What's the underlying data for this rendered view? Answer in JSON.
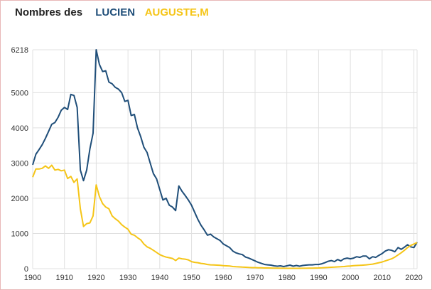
{
  "title": {
    "prefix": "Nombres des",
    "names": [
      "LUCIEN",
      "AUGUSTE,M"
    ]
  },
  "chart_data": {
    "type": "line",
    "xlim": [
      1900,
      2021
    ],
    "ylim": [
      0,
      6218
    ],
    "x_ticks": [
      1900,
      1910,
      1920,
      1930,
      1940,
      1950,
      1960,
      1970,
      1980,
      1990,
      2000,
      2010,
      2020
    ],
    "y_ticks": [
      0,
      1000,
      2000,
      3000,
      4000,
      5000,
      6218
    ],
    "grid": true,
    "legend": "top-left",
    "series": [
      {
        "name": "LUCIEN",
        "color": "#1f4e79",
        "points": [
          [
            1900,
            2950
          ],
          [
            1901,
            3250
          ],
          [
            1902,
            3380
          ],
          [
            1903,
            3520
          ],
          [
            1904,
            3700
          ],
          [
            1905,
            3900
          ],
          [
            1906,
            4100
          ],
          [
            1907,
            4150
          ],
          [
            1908,
            4300
          ],
          [
            1909,
            4500
          ],
          [
            1910,
            4580
          ],
          [
            1911,
            4520
          ],
          [
            1912,
            4950
          ],
          [
            1913,
            4920
          ],
          [
            1914,
            4580
          ],
          [
            1915,
            2800
          ],
          [
            1916,
            2500
          ],
          [
            1917,
            2800
          ],
          [
            1918,
            3400
          ],
          [
            1919,
            3850
          ],
          [
            1920,
            6218
          ],
          [
            1921,
            5800
          ],
          [
            1922,
            5600
          ],
          [
            1923,
            5620
          ],
          [
            1924,
            5300
          ],
          [
            1925,
            5250
          ],
          [
            1926,
            5150
          ],
          [
            1927,
            5100
          ],
          [
            1928,
            5000
          ],
          [
            1929,
            4750
          ],
          [
            1930,
            4780
          ],
          [
            1931,
            4350
          ],
          [
            1932,
            4380
          ],
          [
            1933,
            4000
          ],
          [
            1934,
            3750
          ],
          [
            1935,
            3450
          ],
          [
            1936,
            3300
          ],
          [
            1937,
            3000
          ],
          [
            1938,
            2700
          ],
          [
            1939,
            2550
          ],
          [
            1940,
            2250
          ],
          [
            1941,
            1950
          ],
          [
            1942,
            2000
          ],
          [
            1943,
            1800
          ],
          [
            1944,
            1750
          ],
          [
            1945,
            1650
          ],
          [
            1946,
            2350
          ],
          [
            1947,
            2200
          ],
          [
            1948,
            2080
          ],
          [
            1949,
            1950
          ],
          [
            1950,
            1800
          ],
          [
            1951,
            1600
          ],
          [
            1952,
            1400
          ],
          [
            1953,
            1230
          ],
          [
            1954,
            1100
          ],
          [
            1955,
            950
          ],
          [
            1956,
            980
          ],
          [
            1957,
            900
          ],
          [
            1958,
            850
          ],
          [
            1959,
            800
          ],
          [
            1960,
            700
          ],
          [
            1961,
            650
          ],
          [
            1962,
            600
          ],
          [
            1963,
            500
          ],
          [
            1964,
            450
          ],
          [
            1965,
            420
          ],
          [
            1966,
            400
          ],
          [
            1967,
            330
          ],
          [
            1968,
            300
          ],
          [
            1969,
            260
          ],
          [
            1970,
            220
          ],
          [
            1971,
            180
          ],
          [
            1972,
            150
          ],
          [
            1973,
            120
          ],
          [
            1974,
            110
          ],
          [
            1975,
            100
          ],
          [
            1976,
            80
          ],
          [
            1977,
            70
          ],
          [
            1978,
            80
          ],
          [
            1979,
            60
          ],
          [
            1980,
            80
          ],
          [
            1981,
            100
          ],
          [
            1982,
            70
          ],
          [
            1983,
            90
          ],
          [
            1984,
            70
          ],
          [
            1985,
            90
          ],
          [
            1986,
            100
          ],
          [
            1987,
            110
          ],
          [
            1988,
            110
          ],
          [
            1989,
            120
          ],
          [
            1990,
            120
          ],
          [
            1991,
            140
          ],
          [
            1992,
            170
          ],
          [
            1993,
            210
          ],
          [
            1994,
            230
          ],
          [
            1995,
            200
          ],
          [
            1996,
            260
          ],
          [
            1997,
            220
          ],
          [
            1998,
            280
          ],
          [
            1999,
            300
          ],
          [
            2000,
            280
          ],
          [
            2001,
            300
          ],
          [
            2002,
            340
          ],
          [
            2003,
            320
          ],
          [
            2004,
            360
          ],
          [
            2005,
            360
          ],
          [
            2006,
            280
          ],
          [
            2007,
            340
          ],
          [
            2008,
            320
          ],
          [
            2009,
            380
          ],
          [
            2010,
            430
          ],
          [
            2011,
            500
          ],
          [
            2012,
            540
          ],
          [
            2013,
            520
          ],
          [
            2014,
            480
          ],
          [
            2015,
            600
          ],
          [
            2016,
            550
          ],
          [
            2017,
            610
          ],
          [
            2018,
            680
          ],
          [
            2019,
            620
          ],
          [
            2020,
            600
          ],
          [
            2021,
            750
          ]
        ]
      },
      {
        "name": "AUGUSTE,M",
        "color": "#f5c518",
        "points": [
          [
            1900,
            2600
          ],
          [
            1901,
            2830
          ],
          [
            1902,
            2830
          ],
          [
            1903,
            2850
          ],
          [
            1904,
            2920
          ],
          [
            1905,
            2850
          ],
          [
            1906,
            2940
          ],
          [
            1907,
            2800
          ],
          [
            1908,
            2820
          ],
          [
            1909,
            2780
          ],
          [
            1910,
            2800
          ],
          [
            1911,
            2560
          ],
          [
            1912,
            2620
          ],
          [
            1913,
            2450
          ],
          [
            1914,
            2550
          ],
          [
            1915,
            1700
          ],
          [
            1916,
            1200
          ],
          [
            1917,
            1280
          ],
          [
            1918,
            1300
          ],
          [
            1919,
            1500
          ],
          [
            1920,
            2380
          ],
          [
            1921,
            2050
          ],
          [
            1922,
            1850
          ],
          [
            1923,
            1750
          ],
          [
            1924,
            1700
          ],
          [
            1925,
            1500
          ],
          [
            1926,
            1420
          ],
          [
            1927,
            1350
          ],
          [
            1928,
            1250
          ],
          [
            1929,
            1180
          ],
          [
            1930,
            1120
          ],
          [
            1931,
            980
          ],
          [
            1932,
            950
          ],
          [
            1933,
            880
          ],
          [
            1934,
            820
          ],
          [
            1935,
            700
          ],
          [
            1936,
            620
          ],
          [
            1937,
            580
          ],
          [
            1938,
            520
          ],
          [
            1939,
            460
          ],
          [
            1940,
            400
          ],
          [
            1941,
            360
          ],
          [
            1942,
            330
          ],
          [
            1943,
            310
          ],
          [
            1944,
            290
          ],
          [
            1945,
            230
          ],
          [
            1946,
            300
          ],
          [
            1947,
            280
          ],
          [
            1948,
            270
          ],
          [
            1949,
            250
          ],
          [
            1950,
            200
          ],
          [
            1951,
            180
          ],
          [
            1952,
            170
          ],
          [
            1953,
            150
          ],
          [
            1954,
            140
          ],
          [
            1955,
            120
          ],
          [
            1956,
            110
          ],
          [
            1957,
            105
          ],
          [
            1958,
            100
          ],
          [
            1959,
            95
          ],
          [
            1960,
            85
          ],
          [
            1961,
            80
          ],
          [
            1962,
            75
          ],
          [
            1963,
            60
          ],
          [
            1964,
            55
          ],
          [
            1965,
            50
          ],
          [
            1966,
            45
          ],
          [
            1967,
            40
          ],
          [
            1968,
            35
          ],
          [
            1969,
            30
          ],
          [
            1970,
            30
          ],
          [
            1971,
            25
          ],
          [
            1972,
            25
          ],
          [
            1973,
            20
          ],
          [
            1974,
            20
          ],
          [
            1975,
            18
          ],
          [
            1976,
            15
          ],
          [
            1977,
            15
          ],
          [
            1978,
            12
          ],
          [
            1979,
            12
          ],
          [
            1980,
            10
          ],
          [
            1981,
            10
          ],
          [
            1982,
            10
          ],
          [
            1983,
            10
          ],
          [
            1984,
            10
          ],
          [
            1985,
            12
          ],
          [
            1986,
            12
          ],
          [
            1987,
            15
          ],
          [
            1988,
            15
          ],
          [
            1989,
            18
          ],
          [
            1990,
            20
          ],
          [
            1991,
            25
          ],
          [
            1992,
            30
          ],
          [
            1993,
            35
          ],
          [
            1994,
            40
          ],
          [
            1995,
            45
          ],
          [
            1996,
            50
          ],
          [
            1997,
            55
          ],
          [
            1998,
            60
          ],
          [
            1999,
            70
          ],
          [
            2000,
            75
          ],
          [
            2001,
            85
          ],
          [
            2002,
            90
          ],
          [
            2003,
            95
          ],
          [
            2004,
            100
          ],
          [
            2005,
            110
          ],
          [
            2006,
            120
          ],
          [
            2007,
            130
          ],
          [
            2008,
            150
          ],
          [
            2009,
            170
          ],
          [
            2010,
            190
          ],
          [
            2011,
            220
          ],
          [
            2012,
            250
          ],
          [
            2013,
            280
          ],
          [
            2014,
            330
          ],
          [
            2015,
            390
          ],
          [
            2016,
            450
          ],
          [
            2017,
            520
          ],
          [
            2018,
            600
          ],
          [
            2019,
            660
          ],
          [
            2020,
            700
          ],
          [
            2021,
            740
          ]
        ]
      }
    ]
  }
}
